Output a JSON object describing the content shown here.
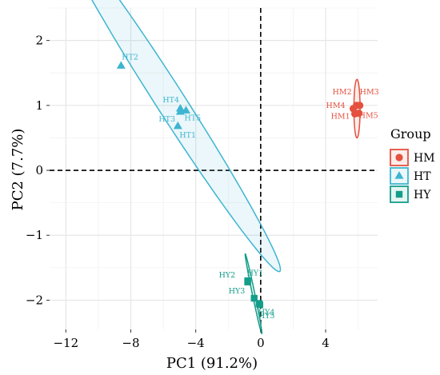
{
  "chart_data": {
    "type": "scatter",
    "xlabel": "PC1 (91.2%)",
    "ylabel": "PC2 (7.7%)",
    "xlim": [
      -13,
      7.2
    ],
    "ylim": [
      -2.45,
      2.5
    ],
    "xticks": [
      -12,
      -8,
      -4,
      0,
      4
    ],
    "yticks": [
      -2,
      -1,
      0,
      1,
      2
    ],
    "xtick_labels": [
      "−12",
      "−8",
      "−4",
      "0",
      "4"
    ],
    "ytick_labels": [
      "−2",
      "−1",
      "0",
      "1",
      "2"
    ],
    "grid": true,
    "reference_lines": {
      "x": 0,
      "y": 0,
      "style": "dashed"
    },
    "legend": {
      "title": "Group",
      "placement": "right",
      "entries": [
        "HM",
        "HT",
        "HY"
      ]
    },
    "series": [
      {
        "name": "HM",
        "color": "#E4513E",
        "marker": "circle",
        "points": [
          {
            "label": "HM1",
            "x": 5.8,
            "y": 0.87
          },
          {
            "label": "HM2",
            "x": 5.9,
            "y": 1.0
          },
          {
            "label": "HM3",
            "x": 6.1,
            "y": 1.0
          },
          {
            "label": "HM4",
            "x": 5.7,
            "y": 0.95
          },
          {
            "label": "HM5",
            "x": 6.05,
            "y": 0.88
          }
        ],
        "ellipse": {
          "cx": 5.93,
          "cy": 0.95,
          "rx": 0.45,
          "ry": 0.19,
          "angle": -90
        }
      },
      {
        "name": "HT",
        "color": "#3EB5D1",
        "marker": "triangle",
        "points": [
          {
            "label": "HT1",
            "x": -5.1,
            "y": 0.68
          },
          {
            "label": "HT2",
            "x": -8.6,
            "y": 1.61
          },
          {
            "label": "HT3",
            "x": -4.95,
            "y": 0.9
          },
          {
            "label": "HT4",
            "x": -4.95,
            "y": 0.95
          },
          {
            "label": "HT5",
            "x": -4.6,
            "y": 0.92
          }
        ],
        "ellipse": {
          "cx": -5.6,
          "cy": 1.08,
          "rx": 7.3,
          "ry": 0.38,
          "angle": -21
        }
      },
      {
        "name": "HY",
        "color": "#149E8A",
        "marker": "square",
        "points": [
          {
            "label": "HY1",
            "x": -0.8,
            "y": -1.72
          },
          {
            "label": "HY2",
            "x": -0.8,
            "y": -1.7
          },
          {
            "label": "HY3",
            "x": -0.4,
            "y": -1.97
          },
          {
            "label": "HY4",
            "x": -0.1,
            "y": -2.05
          },
          {
            "label": "HY5",
            "x": -0.05,
            "y": -2.07
          }
        ],
        "ellipse": {
          "cx": -0.44,
          "cy": -1.9,
          "rx": 0.8,
          "ry": 0.06,
          "angle": -50
        }
      }
    ]
  }
}
